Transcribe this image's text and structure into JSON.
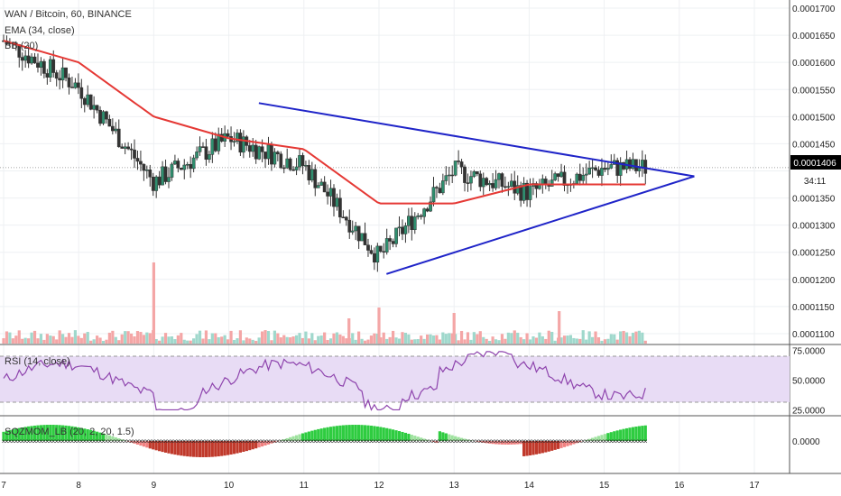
{
  "colors": {
    "up": "#26a69a",
    "down": "#ef5350",
    "candle_border": "#333333",
    "ema": "#e53935",
    "trendline": "#1f24c8",
    "rsi_line": "#8e44ad",
    "rsi_band": "#e8dcf5",
    "mom_pos_strong": "#2ecc40",
    "mom_pos_weak": "#9ee29e",
    "mom_neg_strong": "#c0392b",
    "mom_neg_weak": "#f08080",
    "price_marker": "#000000"
  },
  "header": {
    "symbol_title": "WAN / Bitcoin, 60, BINANCE",
    "ema_label": "EMA (34, close)",
    "bb_label": "BB (20)"
  },
  "price_axis": {
    "ticks": [
      "0.0001700",
      "0.0001650",
      "0.0001600",
      "0.0001550",
      "0.0001500",
      "0.0001450",
      "0.0001406",
      "0.0001350",
      "0.0001300",
      "0.0001250",
      "0.0001200",
      "0.0001150",
      "0.0001100"
    ],
    "last_price": "0.0001406",
    "countdown": "34:11"
  },
  "rsi_panel": {
    "label": "RSI (14, close)",
    "ticks": [
      "75.0000",
      "50.0000",
      "25.0000"
    ]
  },
  "mom_panel": {
    "label": "SQZMOM_LB (20, 2, 20, 1.5)",
    "tick": "0.0000"
  },
  "time_axis": {
    "labels": [
      "7",
      "8",
      "9",
      "10",
      "11",
      "12",
      "13",
      "14",
      "15",
      "16",
      "17"
    ]
  },
  "chart_data": {
    "type": "line",
    "title": "WAN / Bitcoin, 60, BINANCE",
    "x": [
      "7",
      "8",
      "9",
      "10",
      "11",
      "12",
      "13",
      "14",
      "15"
    ],
    "series": [
      {
        "name": "WAN / Bitcoin",
        "values": [
          0.000164,
          0.0001555,
          0.000138,
          0.000146,
          0.000141,
          0.000124,
          0.00014,
          0.000136,
          0.0001406
        ]
      },
      {
        "name": "EMA (34, close)",
        "values": [
          0.000164,
          0.00016,
          0.00015,
          0.000146,
          0.000144,
          0.000134,
          0.000134,
          0.0001375,
          0.0001375
        ]
      }
    ],
    "trendlines": [
      {
        "from": {
          "x": "10.4",
          "y": 0.0001525
        },
        "to": {
          "x": "16.2",
          "y": 0.000139
        }
      },
      {
        "from": {
          "x": "12.1",
          "y": 0.000121
        },
        "to": {
          "x": "16.2",
          "y": 0.000139
        }
      }
    ],
    "ylim": [
      0.000108,
      0.0001715
    ],
    "last_price": 0.0001406
  }
}
